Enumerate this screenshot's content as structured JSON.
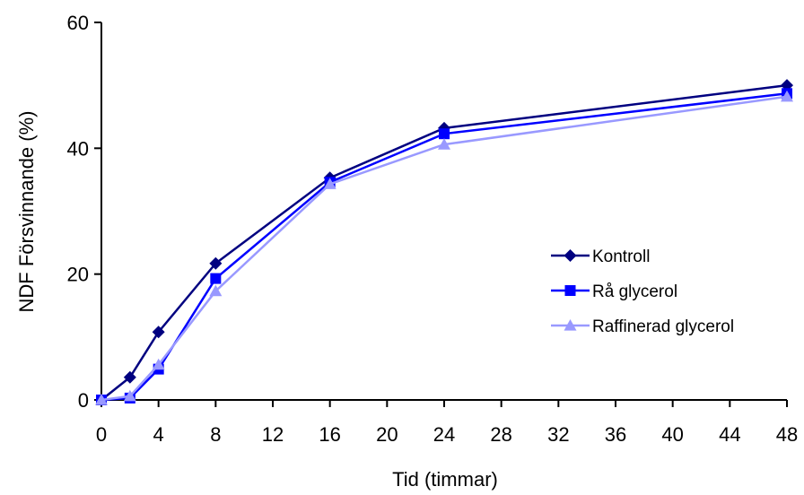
{
  "chart_data": {
    "type": "line",
    "title": "",
    "xlabel": "Tid (timmar)",
    "ylabel": "NDF Försvinnande (%)",
    "xlim": [
      0,
      48
    ],
    "ylim": [
      0,
      60
    ],
    "x_ticks": [
      0,
      4,
      8,
      12,
      16,
      20,
      24,
      28,
      32,
      36,
      40,
      44,
      48
    ],
    "y_ticks": [
      0,
      20,
      40,
      60
    ],
    "grid": false,
    "legend_position": "right",
    "x": [
      0,
      2,
      4,
      8,
      16,
      24,
      48
    ],
    "series": [
      {
        "name": "Kontroll",
        "marker": "diamond",
        "color": "#000080",
        "values": [
          0,
          3.6,
          10.8,
          21.7,
          35.3,
          43.2,
          50.0
        ]
      },
      {
        "name": "Rå glycerol",
        "marker": "square",
        "color": "#0000FF",
        "values": [
          0,
          0.3,
          4.9,
          19.3,
          34.6,
          42.3,
          48.7
        ]
      },
      {
        "name": "Raffinerad glycerol",
        "marker": "triangle",
        "color": "#9999FF",
        "values": [
          0,
          0.6,
          5.6,
          17.3,
          34.3,
          40.6,
          48.2
        ]
      }
    ]
  }
}
